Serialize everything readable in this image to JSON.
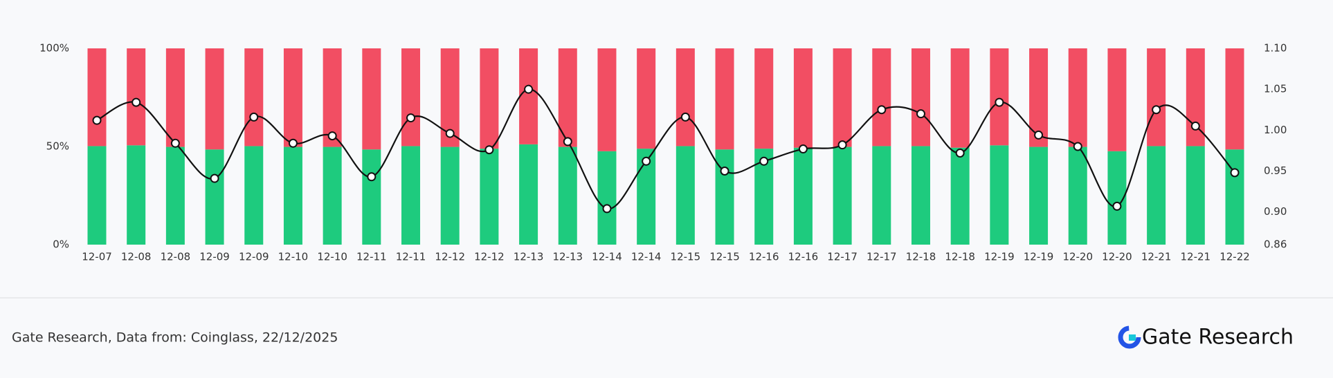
{
  "chart_data": {
    "type": "stacked-bar-line",
    "categories": [
      "12-07",
      "12-08",
      "12-08",
      "12-09",
      "12-09",
      "12-10",
      "12-10",
      "12-11",
      "12-11",
      "12-12",
      "12-12",
      "12-13",
      "12-13",
      "12-14",
      "12-14",
      "12-15",
      "12-15",
      "12-16",
      "12-16",
      "12-17",
      "12-17",
      "12-18",
      "12-18",
      "12-19",
      "12-19",
      "12-20",
      "12-20",
      "12-21",
      "12-21",
      "12-22"
    ],
    "series": [
      {
        "color": "#1ecb7e",
        "values": [
          50.2,
          50.6,
          49.8,
          48.5,
          50.2,
          49.8,
          49.8,
          48.5,
          50.2,
          49.8,
          48.9,
          51.1,
          49.8,
          47.6,
          48.9,
          50.2,
          48.5,
          48.9,
          49.4,
          49.8,
          50.2,
          50.2,
          49.4,
          50.6,
          49.8,
          49.8,
          47.6,
          50.2,
          50.2,
          48.5
        ]
      },
      {
        "color": "#f24e63",
        "values": [
          49.8,
          49.4,
          50.2,
          51.5,
          49.8,
          50.2,
          50.2,
          51.5,
          49.8,
          50.2,
          51.1,
          48.9,
          50.2,
          52.4,
          51.1,
          49.8,
          51.5,
          51.1,
          50.6,
          50.2,
          49.8,
          49.8,
          50.6,
          49.4,
          50.2,
          50.2,
          52.4,
          49.8,
          49.8,
          51.5
        ]
      },
      {
        "type": "line",
        "axis": "y2",
        "color": "#111111",
        "values": [
          1.012,
          1.034,
          0.984,
          0.941,
          1.016,
          0.984,
          0.993,
          0.943,
          1.015,
          0.996,
          0.976,
          1.05,
          0.986,
          0.904,
          0.962,
          1.016,
          0.95,
          0.962,
          0.977,
          0.982,
          1.025,
          1.02,
          0.972,
          1.034,
          0.994,
          0.98,
          0.907,
          1.025,
          1.005,
          0.948
        ]
      }
    ],
    "ylim": [
      0,
      100
    ],
    "yticks": [
      {
        "value": 0,
        "label": "0%"
      },
      {
        "value": 50,
        "label": "50%"
      },
      {
        "value": 100,
        "label": "100%"
      }
    ],
    "y2lim": [
      0.86,
      1.1
    ],
    "y2ticks": [
      0.86,
      {
        "value": 0.9,
        "label": "0.90"
      },
      0.95,
      {
        "value": 1.0,
        "label": "1.00"
      },
      1.05,
      {
        "value": 1.1,
        "label": "1.10"
      }
    ],
    "source": "Gate Research, Data from: Coinglass, 22/12/2025",
    "logo": "Gate Research"
  }
}
